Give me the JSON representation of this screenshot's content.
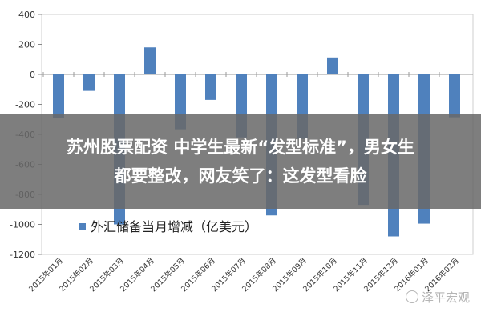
{
  "chart_data": {
    "type": "bar",
    "categories": [
      "2015年01月",
      "2015年02月",
      "2015年03月",
      "2015年04月",
      "2015年05月",
      "2015年06月",
      "2015年07月",
      "2015年08月",
      "2015年09月",
      "2015年10月",
      "2015年11月",
      "2015年12月",
      "2016年01月",
      "2016年02月"
    ],
    "series": [
      {
        "name": "外汇储备当月增减（亿美元）",
        "values": [
          -293,
          -110,
          -1000,
          180,
          -366,
          -170,
          -420,
          -940,
          -430,
          113,
          -870,
          -1080,
          -995,
          -286
        ]
      }
    ],
    "yticks": [
      "400",
      "200",
      "0",
      "-200",
      "-400",
      "-600",
      "-800",
      "-1000",
      "-1200"
    ],
    "ylim": [
      -1200,
      400
    ],
    "grid": false,
    "legend_position": "bottom-left",
    "bar_color": "#4f81bd"
  },
  "headline": {
    "line1": "苏州股票配资 中学生最新“发型标准”，男女生",
    "line2": "都要整改，网友笑了：这发型看脸"
  },
  "watermark": "泽平宏观"
}
